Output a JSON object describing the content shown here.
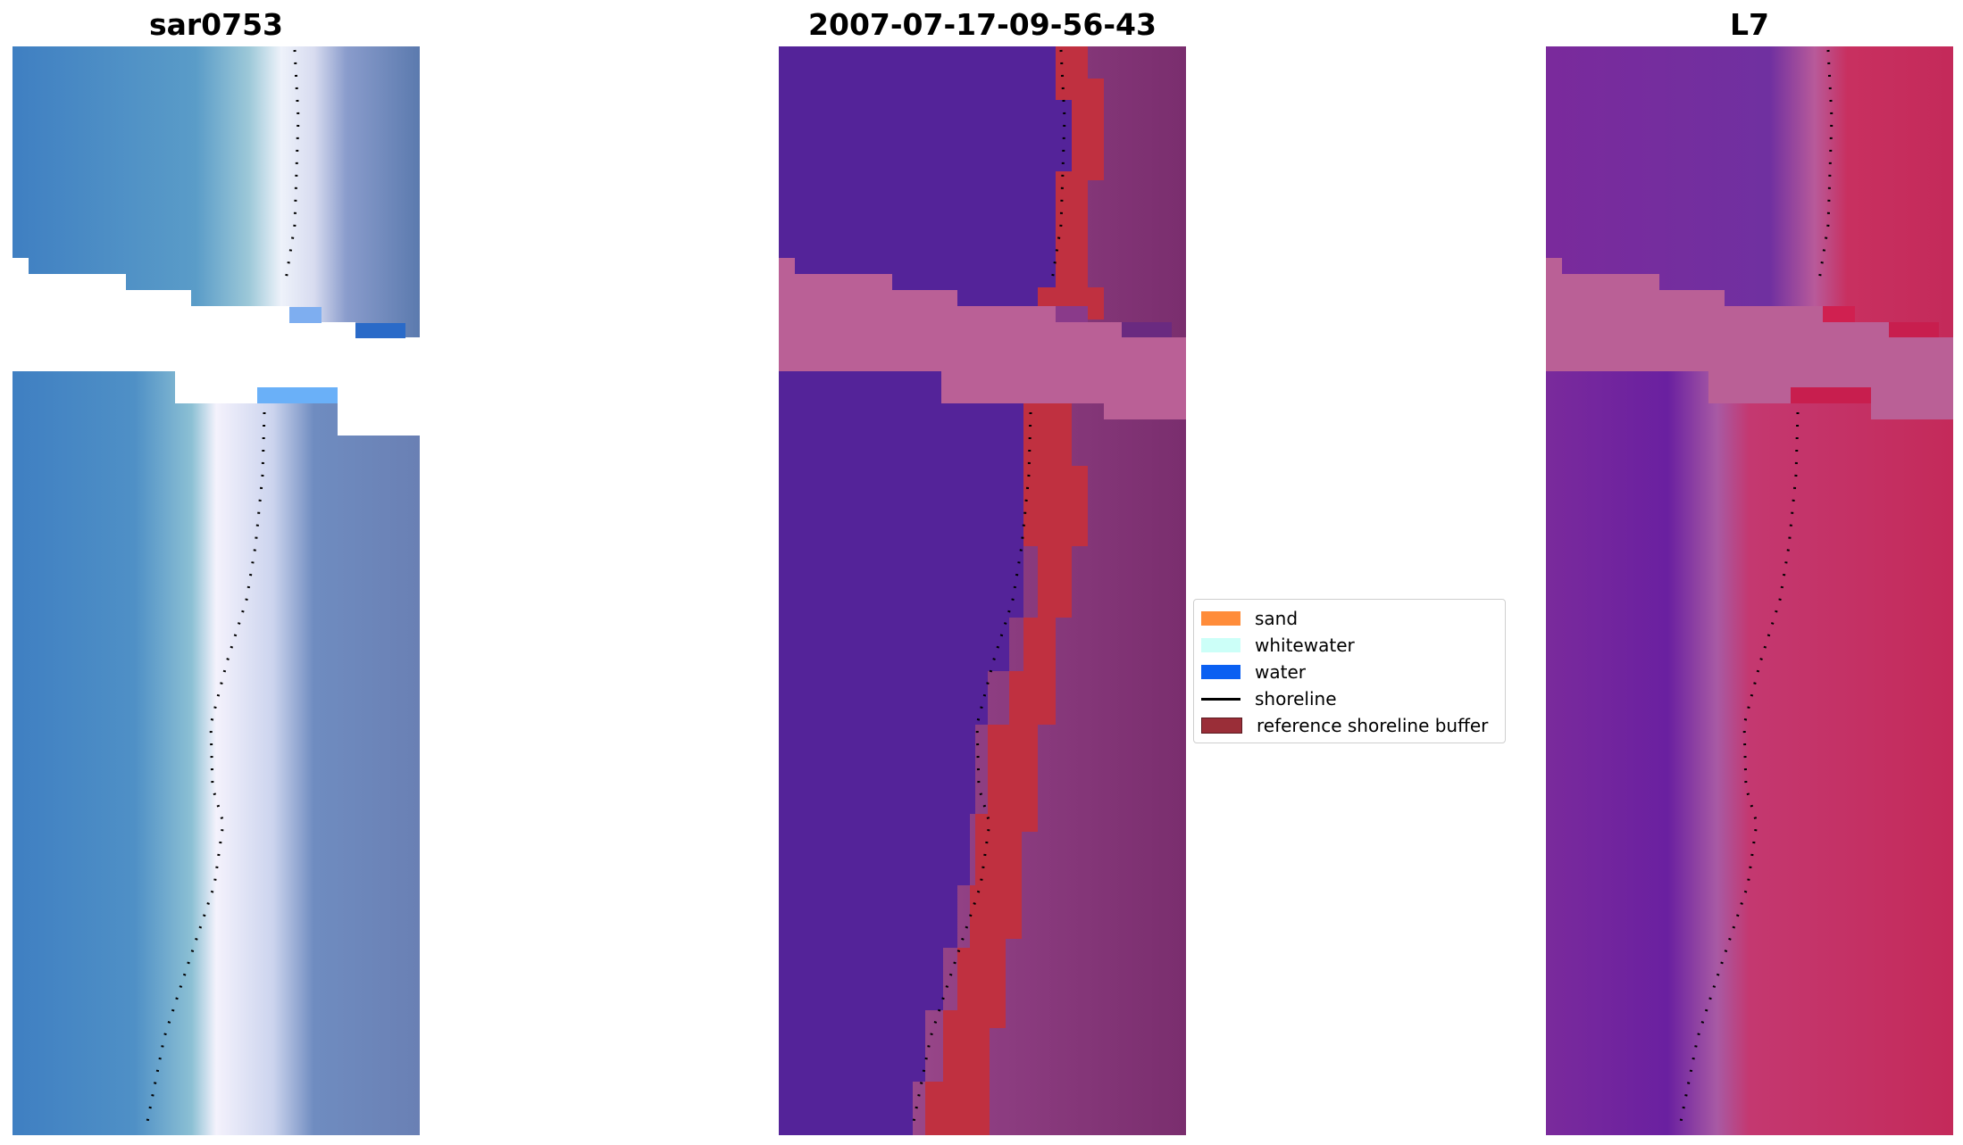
{
  "panels": [
    {
      "title": "sar0753"
    },
    {
      "title": "2007-07-17-09-56-43"
    },
    {
      "title": "L7"
    }
  ],
  "legend": {
    "items": [
      {
        "label": "sand",
        "color": "#ff8c3a",
        "kind": "patch"
      },
      {
        "label": "whitewater",
        "color": "#ccfff8",
        "kind": "patch"
      },
      {
        "label": "water",
        "color": "#0a60f2",
        "kind": "patch"
      },
      {
        "label": "shoreline",
        "color": "#000000",
        "kind": "line"
      },
      {
        "label": "reference shoreline buffer",
        "color": "#9a2e38",
        "kind": "patch"
      }
    ]
  },
  "colors": {
    "rgb_water": "#4a8ac4",
    "rgb_swash": "#eef0f8",
    "rgb_land": "#6e86b8",
    "class_water": "#542399",
    "class_buffer": "#c03040",
    "class_land": "#8a3a7a",
    "class_nodata": "#ba6096",
    "fc_water": "#7a2a9c",
    "fc_land": "#c42a5a",
    "fc_nodata": "#ba6096"
  }
}
